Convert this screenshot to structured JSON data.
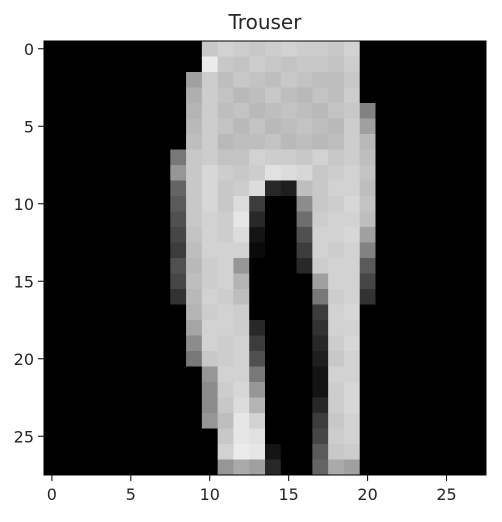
{
  "chart_data": {
    "type": "heatmap",
    "title": "Trouser",
    "colormap": "gray",
    "vmin": 0,
    "vmax": 255,
    "xlim": [
      -0.5,
      27.5
    ],
    "ylim": [
      27.5,
      -0.5
    ],
    "xticks": [
      0,
      5,
      10,
      15,
      20,
      25
    ],
    "yticks": [
      0,
      5,
      10,
      15,
      20,
      25
    ],
    "xlabel": "",
    "ylabel": "",
    "grid": false,
    "image_rows": [
      [
        0,
        0,
        0,
        0,
        0,
        0,
        0,
        0,
        0,
        0,
        200,
        210,
        205,
        200,
        205,
        210,
        205,
        205,
        200,
        210,
        0,
        0,
        0,
        0,
        0,
        0,
        0,
        0
      ],
      [
        0,
        0,
        0,
        0,
        0,
        0,
        0,
        0,
        0,
        0,
        235,
        200,
        195,
        205,
        200,
        195,
        200,
        200,
        195,
        205,
        0,
        0,
        0,
        0,
        0,
        0,
        0,
        0
      ],
      [
        0,
        0,
        0,
        0,
        0,
        0,
        0,
        0,
        0,
        160,
        205,
        190,
        200,
        195,
        190,
        200,
        195,
        190,
        190,
        200,
        0,
        0,
        0,
        0,
        0,
        0,
        0,
        0
      ],
      [
        0,
        0,
        0,
        0,
        0,
        0,
        0,
        0,
        0,
        175,
        205,
        195,
        185,
        190,
        200,
        190,
        185,
        195,
        190,
        205,
        0,
        0,
        0,
        0,
        0,
        0,
        0,
        0
      ],
      [
        0,
        0,
        0,
        0,
        0,
        0,
        0,
        0,
        0,
        180,
        205,
        190,
        195,
        185,
        190,
        195,
        190,
        185,
        195,
        200,
        130,
        0,
        0,
        0,
        0,
        0,
        0,
        0
      ],
      [
        0,
        0,
        0,
        0,
        0,
        0,
        0,
        0,
        0,
        185,
        205,
        195,
        185,
        195,
        185,
        190,
        195,
        190,
        185,
        205,
        160,
        0,
        0,
        0,
        0,
        0,
        0,
        0
      ],
      [
        0,
        0,
        0,
        0,
        0,
        0,
        0,
        0,
        0,
        190,
        205,
        185,
        190,
        190,
        195,
        185,
        190,
        185,
        190,
        205,
        185,
        0,
        0,
        0,
        0,
        0,
        0,
        0
      ],
      [
        0,
        0,
        0,
        0,
        0,
        0,
        0,
        0,
        120,
        200,
        205,
        195,
        195,
        210,
        205,
        205,
        200,
        210,
        200,
        205,
        190,
        0,
        0,
        0,
        0,
        0,
        0,
        0
      ],
      [
        0,
        0,
        0,
        0,
        0,
        0,
        0,
        0,
        150,
        200,
        215,
        205,
        200,
        205,
        225,
        220,
        215,
        200,
        205,
        210,
        195,
        0,
        0,
        0,
        0,
        0,
        0,
        0
      ],
      [
        0,
        0,
        0,
        0,
        0,
        0,
        0,
        0,
        100,
        200,
        215,
        200,
        205,
        220,
        40,
        30,
        190,
        200,
        210,
        210,
        190,
        0,
        0,
        0,
        0,
        0,
        0,
        0
      ],
      [
        0,
        0,
        0,
        0,
        0,
        0,
        0,
        0,
        90,
        200,
        215,
        200,
        220,
        60,
        0,
        0,
        140,
        200,
        205,
        215,
        195,
        0,
        0,
        0,
        0,
        0,
        0,
        0
      ],
      [
        0,
        0,
        0,
        0,
        0,
        0,
        0,
        0,
        80,
        200,
        210,
        205,
        230,
        40,
        0,
        0,
        110,
        205,
        210,
        210,
        190,
        0,
        0,
        0,
        0,
        0,
        0,
        0
      ],
      [
        0,
        0,
        0,
        0,
        0,
        0,
        0,
        0,
        70,
        195,
        210,
        205,
        220,
        20,
        0,
        0,
        80,
        210,
        210,
        215,
        160,
        0,
        0,
        0,
        0,
        0,
        0,
        0
      ],
      [
        0,
        0,
        0,
        0,
        0,
        0,
        0,
        0,
        60,
        190,
        210,
        210,
        210,
        10,
        0,
        0,
        60,
        210,
        205,
        210,
        130,
        0,
        0,
        0,
        0,
        0,
        0,
        0
      ],
      [
        0,
        0,
        0,
        0,
        0,
        0,
        0,
        0,
        80,
        185,
        205,
        210,
        150,
        0,
        0,
        0,
        40,
        205,
        210,
        210,
        90,
        0,
        0,
        0,
        0,
        0,
        0,
        0
      ],
      [
        0,
        0,
        0,
        0,
        0,
        0,
        0,
        0,
        70,
        190,
        205,
        210,
        180,
        0,
        0,
        0,
        0,
        160,
        210,
        210,
        70,
        0,
        0,
        0,
        0,
        0,
        0,
        0
      ],
      [
        0,
        0,
        0,
        0,
        0,
        0,
        0,
        0,
        50,
        185,
        210,
        205,
        190,
        0,
        0,
        0,
        0,
        120,
        205,
        210,
        50,
        0,
        0,
        0,
        0,
        0,
        0,
        0
      ],
      [
        0,
        0,
        0,
        0,
        0,
        0,
        0,
        0,
        0,
        180,
        205,
        210,
        205,
        0,
        0,
        0,
        0,
        60,
        210,
        215,
        0,
        0,
        0,
        0,
        0,
        0,
        0,
        0
      ],
      [
        0,
        0,
        0,
        0,
        0,
        0,
        0,
        0,
        0,
        165,
        210,
        210,
        205,
        40,
        0,
        0,
        0,
        50,
        210,
        210,
        0,
        0,
        0,
        0,
        0,
        0,
        0,
        0
      ],
      [
        0,
        0,
        0,
        0,
        0,
        0,
        0,
        0,
        0,
        140,
        210,
        205,
        210,
        60,
        0,
        0,
        0,
        40,
        205,
        215,
        0,
        0,
        0,
        0,
        0,
        0,
        0,
        0
      ],
      [
        0,
        0,
        0,
        0,
        0,
        0,
        0,
        0,
        0,
        120,
        200,
        205,
        210,
        80,
        0,
        0,
        0,
        30,
        200,
        210,
        0,
        0,
        0,
        0,
        0,
        0,
        0,
        0
      ],
      [
        0,
        0,
        0,
        0,
        0,
        0,
        0,
        0,
        0,
        0,
        150,
        210,
        210,
        120,
        0,
        0,
        0,
        20,
        210,
        210,
        0,
        0,
        0,
        0,
        0,
        0,
        0,
        0
      ],
      [
        0,
        0,
        0,
        0,
        0,
        0,
        0,
        0,
        0,
        0,
        140,
        205,
        215,
        150,
        0,
        0,
        0,
        20,
        205,
        215,
        0,
        0,
        0,
        0,
        0,
        0,
        0,
        0
      ],
      [
        0,
        0,
        0,
        0,
        0,
        0,
        0,
        0,
        0,
        0,
        140,
        200,
        220,
        180,
        0,
        0,
        0,
        40,
        205,
        215,
        0,
        0,
        0,
        0,
        0,
        0,
        0,
        0
      ],
      [
        0,
        0,
        0,
        0,
        0,
        0,
        0,
        0,
        0,
        0,
        150,
        190,
        230,
        210,
        0,
        0,
        0,
        60,
        200,
        210,
        0,
        0,
        0,
        0,
        0,
        0,
        0,
        0
      ],
      [
        0,
        0,
        0,
        0,
        0,
        0,
        0,
        0,
        0,
        0,
        0,
        200,
        230,
        225,
        0,
        0,
        0,
        70,
        205,
        210,
        0,
        0,
        0,
        0,
        0,
        0,
        0,
        0
      ],
      [
        0,
        0,
        0,
        0,
        0,
        0,
        0,
        0,
        0,
        0,
        0,
        210,
        235,
        230,
        20,
        0,
        0,
        90,
        200,
        205,
        0,
        0,
        0,
        0,
        0,
        0,
        0,
        0
      ],
      [
        0,
        0,
        0,
        0,
        0,
        0,
        0,
        0,
        0,
        0,
        0,
        150,
        170,
        160,
        40,
        0,
        0,
        100,
        170,
        160,
        0,
        0,
        0,
        0,
        0,
        0,
        0,
        0
      ]
    ]
  },
  "colors": {
    "background": "#ffffff",
    "spine": "#000000",
    "text": "#262626"
  }
}
